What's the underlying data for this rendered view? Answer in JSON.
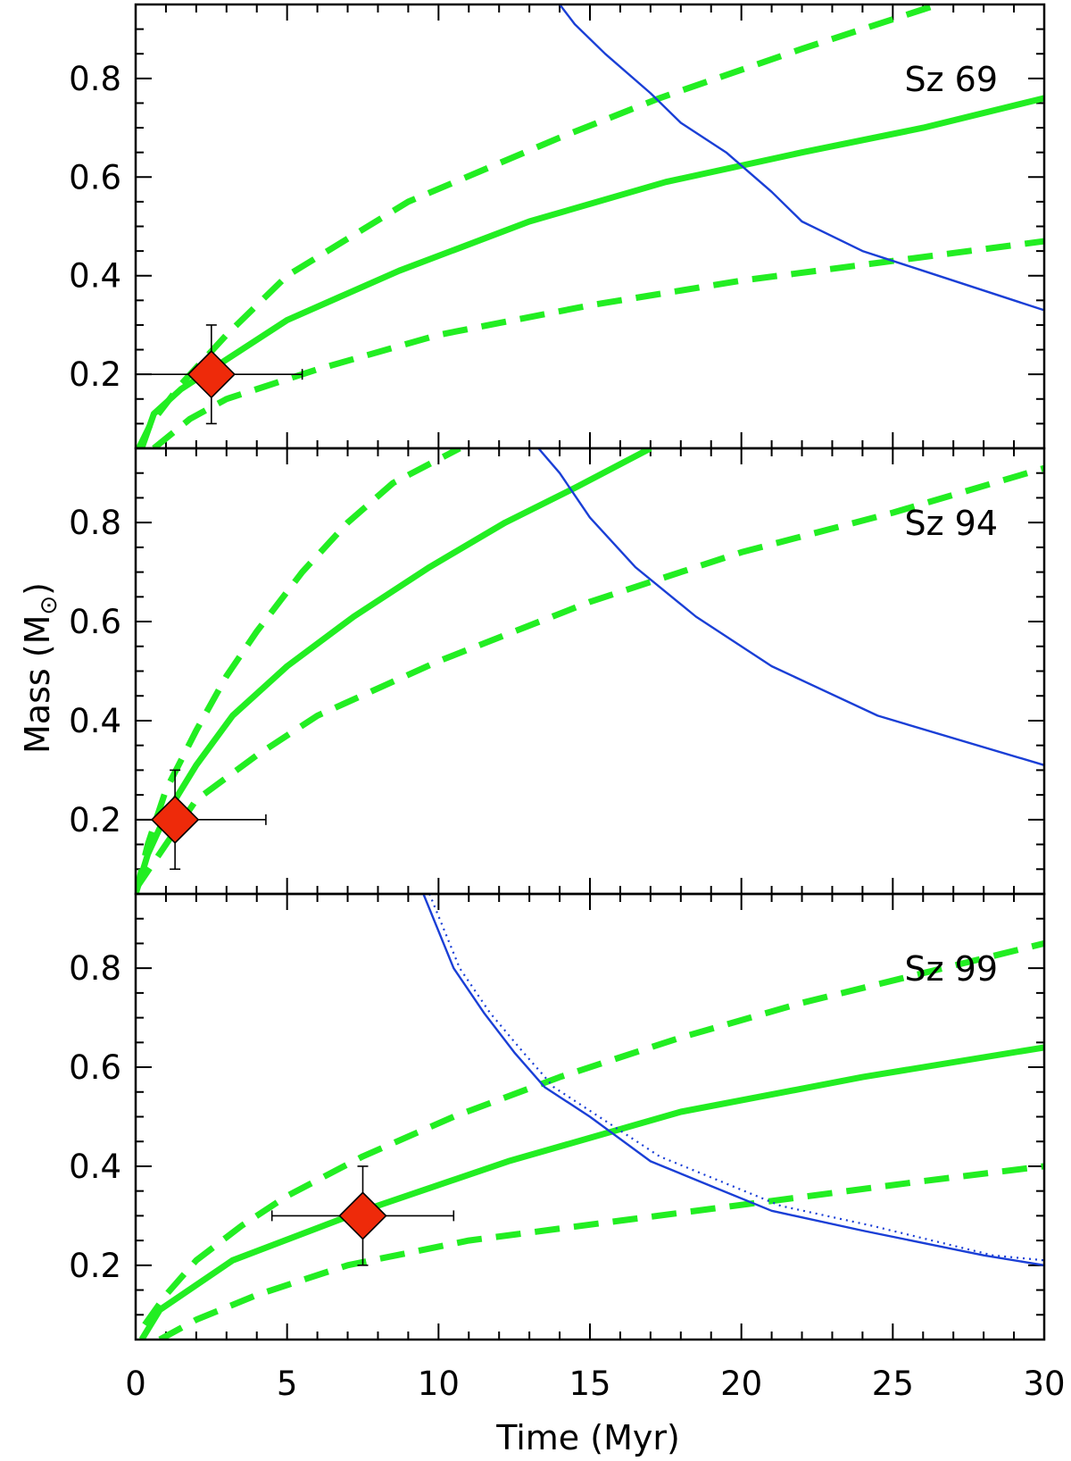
{
  "figure": {
    "xlabel": "Time (Myr)",
    "ylabel_main": "Mass (M",
    "ylabel_symbol": "⊙",
    "ylabel_close": ")",
    "xticks": [
      0,
      5,
      10,
      15,
      20,
      25,
      30
    ],
    "yticks": [
      "0.2",
      "0.4",
      "0.6",
      "0.8"
    ],
    "colors": {
      "model": "#22ee22",
      "limit": "#1a3fd6",
      "marker": "#ee2a0a",
      "error": "#000000"
    }
  },
  "chart_data": [
    {
      "type": "line",
      "label": "Sz 69",
      "xlim": [
        0,
        30
      ],
      "ylim": [
        0.05,
        0.95
      ],
      "x_ticks": [
        0,
        5,
        10,
        15,
        20,
        25,
        30
      ],
      "y_ticks": [
        0.2,
        0.4,
        0.6,
        0.8
      ],
      "series": [
        {
          "style": "solid",
          "color": "#22ee22",
          "points": [
            [
              0.2,
              0.05
            ],
            [
              0.6,
              0.12
            ],
            [
              1.5,
              0.17
            ],
            [
              3,
              0.23
            ],
            [
              5,
              0.31
            ],
            [
              8.7,
              0.41
            ],
            [
              13,
              0.51
            ],
            [
              17.5,
              0.59
            ],
            [
              22,
              0.65
            ],
            [
              26,
              0.7
            ],
            [
              30,
              0.76
            ]
          ]
        },
        {
          "style": "dashed",
          "color": "#22ee22",
          "points": [
            [
              0.1,
              0.05
            ],
            [
              0.5,
              0.1
            ],
            [
              1.5,
              0.18
            ],
            [
              3,
              0.28
            ],
            [
              5,
              0.4
            ],
            [
              9,
              0.55
            ],
            [
              14,
              0.68
            ],
            [
              17.3,
              0.76
            ],
            [
              22,
              0.86
            ],
            [
              26,
              0.94
            ],
            [
              26.5,
              0.95
            ]
          ]
        },
        {
          "style": "dashed",
          "color": "#22ee22",
          "points": [
            [
              0.6,
              0.05
            ],
            [
              1.8,
              0.11
            ],
            [
              3,
              0.15
            ],
            [
              6,
              0.21
            ],
            [
              10,
              0.28
            ],
            [
              15,
              0.34
            ],
            [
              20,
              0.39
            ],
            [
              25,
              0.43
            ],
            [
              30,
              0.47
            ]
          ]
        },
        {
          "style": "solid",
          "color": "#1a3fd6",
          "points": [
            [
              14,
              0.95
            ],
            [
              14.5,
              0.91
            ],
            [
              15.5,
              0.85
            ],
            [
              17,
              0.77
            ],
            [
              18,
              0.71
            ],
            [
              19.5,
              0.65
            ],
            [
              21,
              0.57
            ],
            [
              22,
              0.51
            ],
            [
              24,
              0.45
            ],
            [
              26,
              0.41
            ],
            [
              30,
              0.33
            ]
          ]
        }
      ],
      "points": [
        {
          "x": 2.5,
          "y": 0.2,
          "xerr": [
            2.5,
            3.0
          ],
          "yerr": [
            0.1,
            0.1
          ]
        }
      ]
    },
    {
      "type": "line",
      "label": "Sz 94",
      "xlim": [
        0,
        30
      ],
      "ylim": [
        0.05,
        0.95
      ],
      "x_ticks": [
        0,
        5,
        10,
        15,
        20,
        25,
        30
      ],
      "y_ticks": [
        0.2,
        0.4,
        0.6,
        0.8
      ],
      "series": [
        {
          "style": "solid",
          "color": "#22ee22",
          "points": [
            [
              0,
              0.05
            ],
            [
              0.4,
              0.13
            ],
            [
              1,
              0.21
            ],
            [
              2,
              0.31
            ],
            [
              3.2,
              0.41
            ],
            [
              5,
              0.51
            ],
            [
              7.2,
              0.61
            ],
            [
              9.7,
              0.71
            ],
            [
              12.2,
              0.8
            ],
            [
              14.5,
              0.87
            ],
            [
              17,
              0.95
            ]
          ]
        },
        {
          "style": "dashed",
          "color": "#22ee22",
          "points": [
            [
              0,
              0.05
            ],
            [
              0.4,
              0.15
            ],
            [
              1,
              0.26
            ],
            [
              2,
              0.38
            ],
            [
              3,
              0.49
            ],
            [
              4,
              0.58
            ],
            [
              5.5,
              0.7
            ],
            [
              7,
              0.8
            ],
            [
              8.5,
              0.88
            ],
            [
              10.7,
              0.95
            ]
          ]
        },
        {
          "style": "dashed",
          "color": "#22ee22",
          "points": [
            [
              0,
              0.06
            ],
            [
              1,
              0.15
            ],
            [
              2,
              0.24
            ],
            [
              4,
              0.33
            ],
            [
              6,
              0.41
            ],
            [
              10,
              0.52
            ],
            [
              15,
              0.64
            ],
            [
              20,
              0.74
            ],
            [
              25,
              0.82
            ],
            [
              30,
              0.91
            ]
          ]
        },
        {
          "style": "solid",
          "color": "#1a3fd6",
          "points": [
            [
              13.3,
              0.95
            ],
            [
              14,
              0.9
            ],
            [
              15,
              0.81
            ],
            [
              16.5,
              0.71
            ],
            [
              18.5,
              0.61
            ],
            [
              21,
              0.51
            ],
            [
              24.5,
              0.41
            ],
            [
              30,
              0.31
            ]
          ]
        }
      ],
      "points": [
        {
          "x": 1.3,
          "y": 0.2,
          "xerr": [
            1.3,
            3.0
          ],
          "yerr": [
            0.1,
            0.1
          ]
        }
      ]
    },
    {
      "type": "line",
      "label": "Sz 99",
      "xlim": [
        0,
        30
      ],
      "ylim": [
        0.05,
        0.95
      ],
      "x_ticks": [
        0,
        5,
        10,
        15,
        20,
        25,
        30
      ],
      "y_ticks": [
        0.2,
        0.4,
        0.6,
        0.8
      ],
      "series": [
        {
          "style": "solid",
          "color": "#22ee22",
          "points": [
            [
              0.2,
              0.05
            ],
            [
              0.8,
              0.11
            ],
            [
              3.2,
              0.21
            ],
            [
              7.5,
              0.31
            ],
            [
              12.3,
              0.41
            ],
            [
              18,
              0.51
            ],
            [
              24,
              0.58
            ],
            [
              30,
              0.64
            ]
          ]
        },
        {
          "style": "dashed",
          "color": "#22ee22",
          "points": [
            [
              0.3,
              0.08
            ],
            [
              1,
              0.14
            ],
            [
              2,
              0.21
            ],
            [
              3.5,
              0.28
            ],
            [
              5,
              0.34
            ],
            [
              7.5,
              0.42
            ],
            [
              10.5,
              0.5
            ],
            [
              14,
              0.58
            ],
            [
              18,
              0.66
            ],
            [
              22,
              0.73
            ],
            [
              26,
              0.79
            ],
            [
              30,
              0.85
            ]
          ]
        },
        {
          "style": "dashed",
          "color": "#22ee22",
          "points": [
            [
              0.8,
              0.05
            ],
            [
              2,
              0.09
            ],
            [
              4,
              0.14
            ],
            [
              7,
              0.2
            ],
            [
              11,
              0.25
            ],
            [
              16,
              0.29
            ],
            [
              21,
              0.33
            ],
            [
              26,
              0.37
            ],
            [
              30,
              0.4
            ]
          ]
        },
        {
          "style": "solid",
          "color": "#1a3fd6",
          "points": [
            [
              9.5,
              0.95
            ],
            [
              10.5,
              0.8
            ],
            [
              11.5,
              0.71
            ],
            [
              12.5,
              0.63
            ],
            [
              13.5,
              0.56
            ],
            [
              15,
              0.5
            ],
            [
              17,
              0.41
            ],
            [
              19,
              0.36
            ],
            [
              21,
              0.31
            ],
            [
              24,
              0.27
            ],
            [
              28,
              0.22
            ],
            [
              30,
              0.2
            ]
          ]
        },
        {
          "style": "dotted",
          "color": "#1a3fd6",
          "points": [
            [
              9.7,
              0.95
            ],
            [
              10.7,
              0.8
            ],
            [
              11.7,
              0.71
            ],
            [
              12.8,
              0.63
            ],
            [
              13.8,
              0.56
            ],
            [
              15.3,
              0.5
            ],
            [
              17.3,
              0.42
            ],
            [
              19.3,
              0.37
            ],
            [
              21.3,
              0.32
            ],
            [
              24.3,
              0.28
            ],
            [
              28.3,
              0.22
            ],
            [
              30,
              0.21
            ]
          ]
        }
      ],
      "points": [
        {
          "x": 7.5,
          "y": 0.3,
          "xerr": [
            3.0,
            3.0
          ],
          "yerr": [
            0.1,
            0.1
          ]
        }
      ]
    }
  ]
}
